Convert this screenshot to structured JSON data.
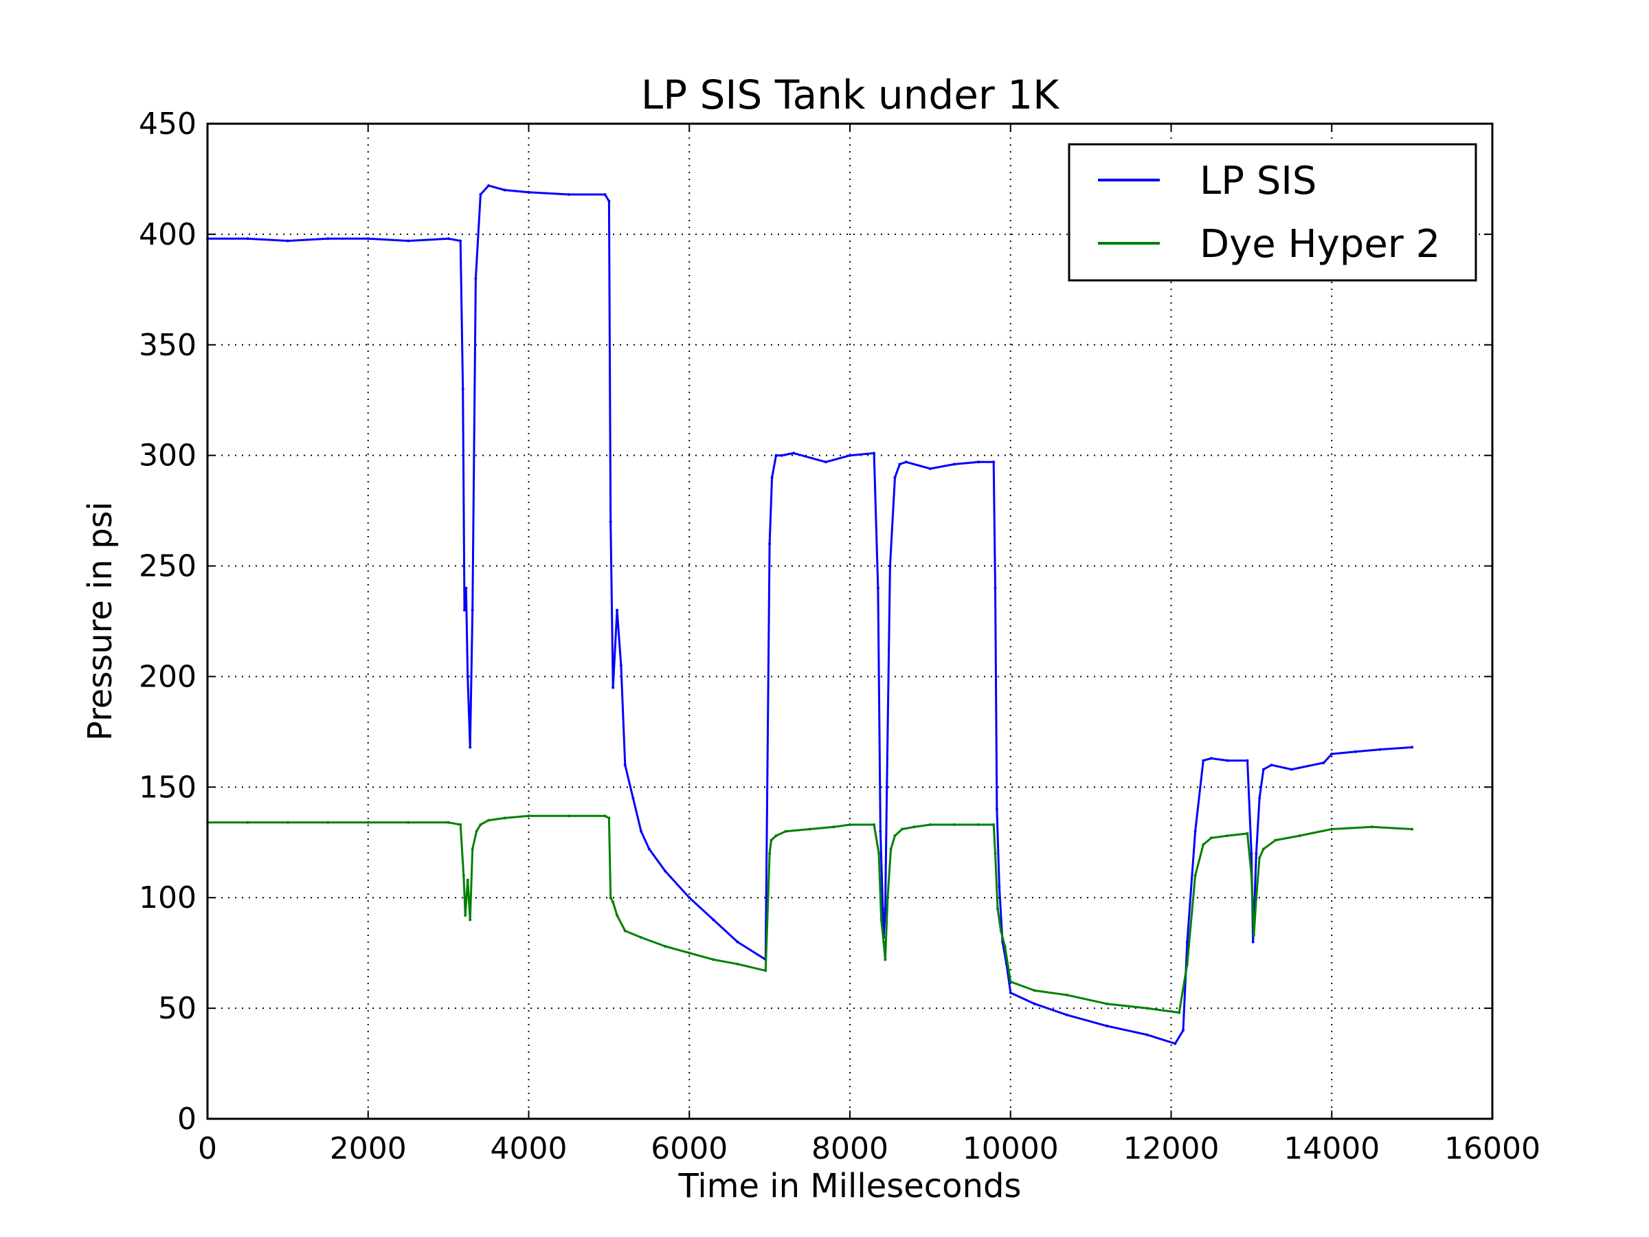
{
  "chart_data": {
    "type": "line",
    "title": "LP SIS Tank under 1K",
    "xlabel": "Time in Milleseconds",
    "ylabel": "Pressure in psi",
    "xlim": [
      0,
      16000
    ],
    "ylim": [
      0,
      450
    ],
    "xticks": [
      0,
      2000,
      4000,
      6000,
      8000,
      10000,
      12000,
      14000,
      16000
    ],
    "yticks": [
      0,
      50,
      100,
      150,
      200,
      250,
      300,
      350,
      400,
      450
    ],
    "xtick_labels": [
      "0",
      "2000",
      "4000",
      "6000",
      "8000",
      "10000",
      "12000",
      "14000",
      "16000"
    ],
    "ytick_labels": [
      "0",
      "50",
      "100",
      "150",
      "200",
      "250",
      "300",
      "350",
      "400",
      "450"
    ],
    "grid": true,
    "grid_style": "dotted",
    "legend_position": "top-right",
    "series": [
      {
        "name": "LP SIS",
        "color": "#0000ff",
        "x": [
          0,
          500,
          1000,
          1500,
          2000,
          2500,
          3000,
          3150,
          3180,
          3200,
          3220,
          3240,
          3270,
          3300,
          3340,
          3400,
          3500,
          3700,
          4000,
          4500,
          4950,
          5000,
          5020,
          5050,
          5100,
          5150,
          5200,
          5300,
          5400,
          5500,
          5700,
          6000,
          6300,
          6600,
          6950,
          7000,
          7030,
          7080,
          7150,
          7300,
          7700,
          8000,
          8300,
          8350,
          8380,
          8420,
          8440,
          8460,
          8500,
          8560,
          8620,
          8700,
          9000,
          9300,
          9600,
          9790,
          9810,
          9830,
          9860,
          9900,
          9950,
          10000,
          10300,
          10700,
          11200,
          11700,
          12050,
          12150,
          12200,
          12300,
          12400,
          12500,
          12700,
          12950,
          13000,
          13020,
          13060,
          13100,
          13150,
          13250,
          13500,
          13900,
          14000,
          14300,
          14600,
          15000
        ],
        "values": [
          398,
          398,
          397,
          398,
          398,
          397,
          398,
          397,
          330,
          230,
          240,
          200,
          168,
          230,
          380,
          418,
          422,
          420,
          419,
          418,
          418,
          415,
          270,
          195,
          230,
          205,
          160,
          145,
          130,
          122,
          112,
          100,
          90,
          80,
          72,
          260,
          290,
          300,
          300,
          301,
          297,
          300,
          301,
          240,
          130,
          82,
          95,
          150,
          250,
          290,
          296,
          297,
          294,
          296,
          297,
          297,
          240,
          140,
          105,
          80,
          70,
          57,
          52,
          47,
          42,
          38,
          34,
          40,
          80,
          130,
          162,
          163,
          162,
          162,
          120,
          80,
          120,
          145,
          158,
          160,
          158,
          161,
          165,
          166,
          167,
          168
        ]
      },
      {
        "name": "Dye Hyper 2",
        "color": "#008000",
        "x": [
          0,
          500,
          1000,
          1500,
          2000,
          2500,
          3000,
          3150,
          3190,
          3210,
          3240,
          3270,
          3300,
          3350,
          3400,
          3500,
          3700,
          4000,
          4500,
          4950,
          5000,
          5020,
          5050,
          5100,
          5200,
          5400,
          5700,
          6000,
          6300,
          6600,
          6950,
          7000,
          7020,
          7080,
          7200,
          7500,
          7800,
          8000,
          8300,
          8360,
          8390,
          8420,
          8440,
          8470,
          8510,
          8560,
          8650,
          8800,
          9000,
          9300,
          9600,
          9790,
          9810,
          9840,
          9880,
          9930,
          10000,
          10300,
          10700,
          11200,
          11700,
          12100,
          12200,
          12300,
          12400,
          12500,
          12700,
          12950,
          13000,
          13030,
          13060,
          13100,
          13150,
          13300,
          13600,
          14000,
          14500,
          15000
        ],
        "values": [
          134,
          134,
          134,
          134,
          134,
          134,
          134,
          133,
          110,
          92,
          108,
          90,
          122,
          130,
          133,
          135,
          136,
          137,
          137,
          137,
          136,
          100,
          98,
          92,
          85,
          82,
          78,
          75,
          72,
          70,
          67,
          120,
          126,
          128,
          130,
          131,
          132,
          133,
          133,
          120,
          90,
          80,
          72,
          100,
          122,
          128,
          131,
          132,
          133,
          133,
          133,
          133,
          120,
          95,
          85,
          78,
          62,
          58,
          56,
          52,
          50,
          48,
          70,
          110,
          124,
          127,
          128,
          129,
          110,
          83,
          100,
          118,
          122,
          126,
          128,
          131,
          132,
          131
        ]
      }
    ]
  }
}
